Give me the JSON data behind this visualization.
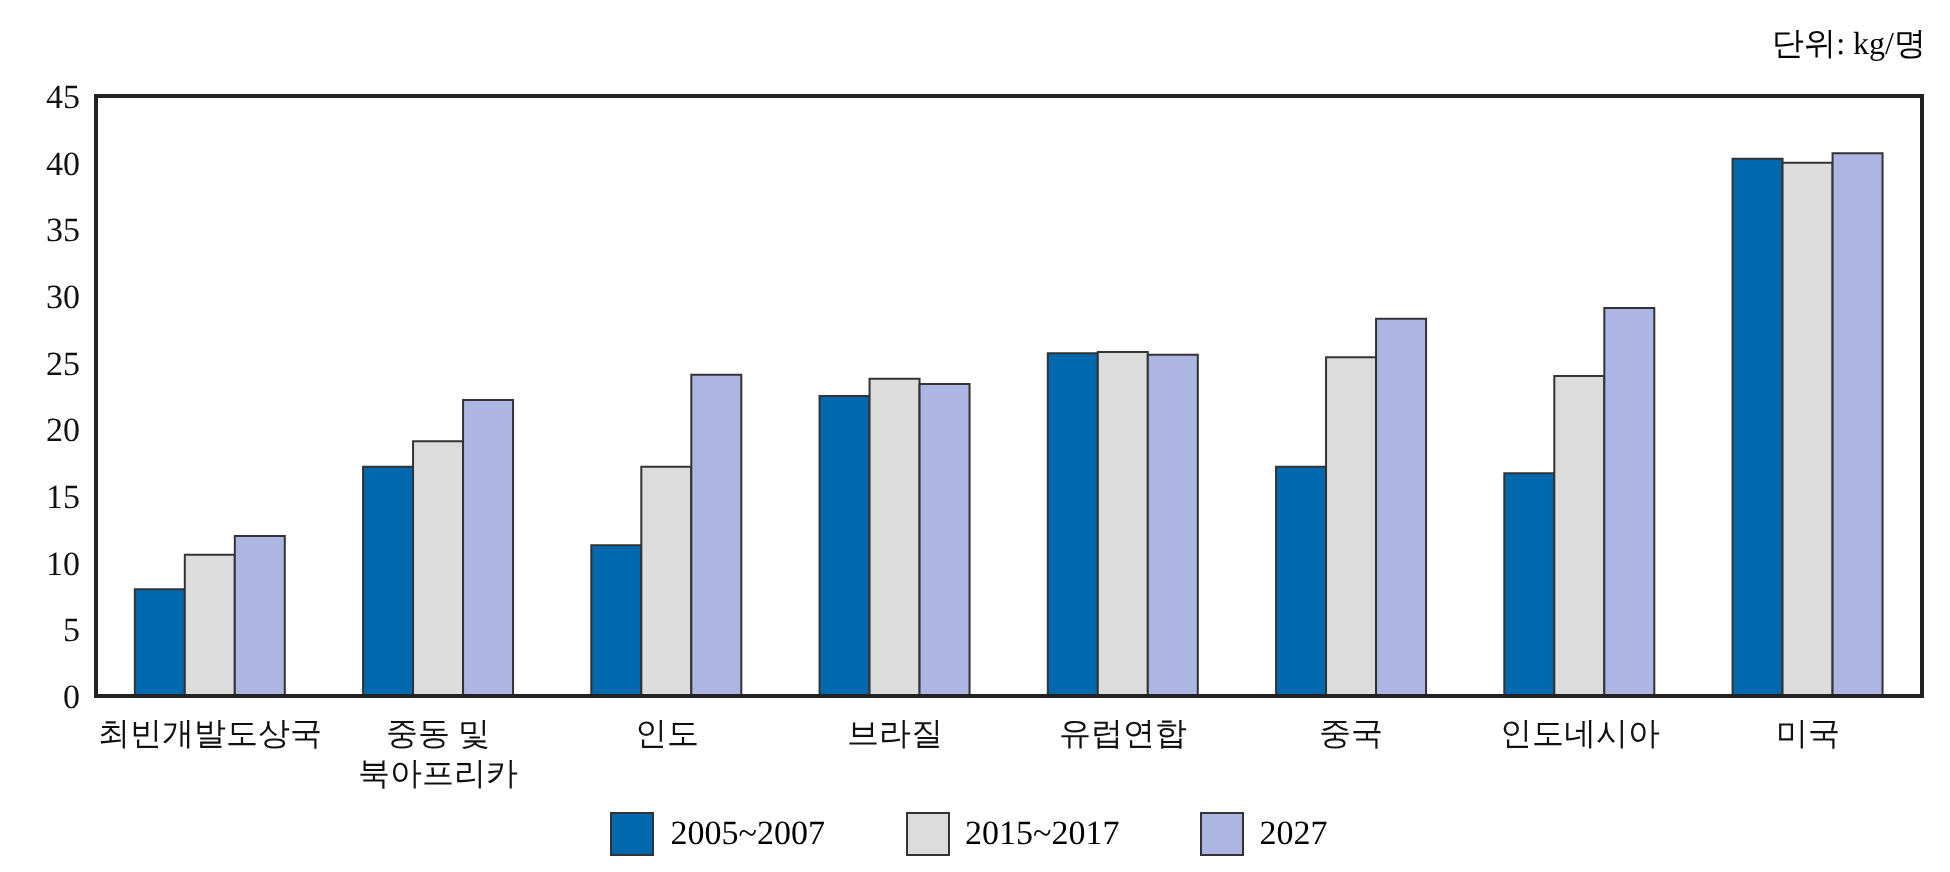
{
  "chart_data": {
    "type": "bar",
    "annotations": [
      "단위: kg/명"
    ],
    "categories": [
      "최빈개발도상국",
      "중동 및\n북아프리카",
      "인도",
      "브라질",
      "유럽연합",
      "중국",
      "인도네시아",
      "미국"
    ],
    "series": [
      {
        "name": "2005~2007",
        "color": "#0068ad",
        "values": [
          8.0,
          17.2,
          11.3,
          22.5,
          25.7,
          17.2,
          16.7,
          40.3
        ]
      },
      {
        "name": "2015~2017",
        "color": "#dcdcdc",
        "values": [
          10.6,
          19.1,
          17.2,
          23.8,
          25.8,
          25.4,
          24.0,
          40.0
        ]
      },
      {
        "name": "2027",
        "color": "#adb6e2",
        "values": [
          12.0,
          22.2,
          24.1,
          23.4,
          25.6,
          28.3,
          29.1,
          40.7
        ]
      }
    ],
    "ylim": [
      0,
      45
    ],
    "yticks": [
      0,
      5,
      10,
      15,
      20,
      25,
      30,
      35,
      40,
      45
    ],
    "legend": "bottom"
  }
}
